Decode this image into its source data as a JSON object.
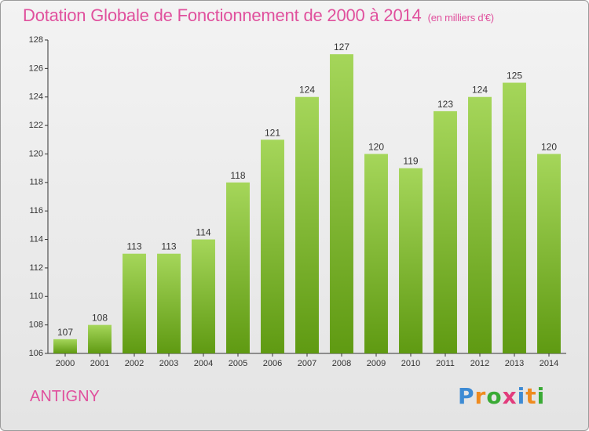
{
  "title": "Dotation Globale de Fonctionnement de 2000 à 2014",
  "unit": "(en milliers d'€)",
  "commune": "ANTIGNY",
  "logo": {
    "letters": [
      "P",
      "r",
      "o",
      "x",
      "i",
      "t",
      "i"
    ],
    "colors": [
      "#3d8bd4",
      "#ef8b1f",
      "#3aaa35",
      "#e23c7c",
      "#3d8bd4",
      "#ef8b1f",
      "#3aaa35"
    ]
  },
  "colors": {
    "bar_top": "#a5d65a",
    "bar_bottom": "#5f9a12",
    "title": "#e0509d"
  },
  "chart_data": {
    "type": "bar",
    "title": "Dotation Globale de Fonctionnement de 2000 à 2014",
    "subtitle": "(en milliers d'€)",
    "categories": [
      "2000",
      "2001",
      "2002",
      "2003",
      "2004",
      "2005",
      "2006",
      "2007",
      "2008",
      "2009",
      "2010",
      "2011",
      "2012",
      "2013",
      "2014"
    ],
    "values": [
      107,
      108,
      113,
      113,
      114,
      118,
      121,
      124,
      127,
      120,
      119,
      123,
      124,
      125,
      120
    ],
    "ylim": [
      106,
      128
    ],
    "yticks": [
      106,
      108,
      110,
      112,
      114,
      116,
      118,
      120,
      122,
      124,
      126,
      128
    ],
    "grid": false,
    "data_labels": true
  }
}
